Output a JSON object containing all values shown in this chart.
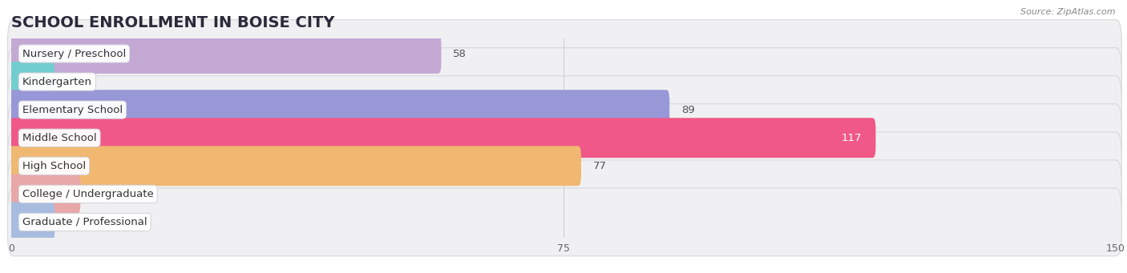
{
  "title": "SCHOOL ENROLLMENT IN BOISE CITY",
  "source": "Source: ZipAtlas.com",
  "categories": [
    "Nursery / Preschool",
    "Kindergarten",
    "Elementary School",
    "Middle School",
    "High School",
    "College / Undergraduate",
    "Graduate / Professional"
  ],
  "values": [
    58,
    0,
    89,
    117,
    77,
    9,
    0
  ],
  "bar_colors": [
    "#c4a8d4",
    "#72cece",
    "#9898d8",
    "#f05888",
    "#f0b870",
    "#e8a8a8",
    "#a8bce0"
  ],
  "xlim": [
    0,
    150
  ],
  "xticks": [
    0,
    75,
    150
  ],
  "title_fontsize": 14,
  "label_fontsize": 9.5,
  "value_fontsize": 9.5,
  "bg_color": "#ffffff",
  "row_bg_color": "#f0f0f2",
  "row_border_color": "#d8d8dd",
  "grid_color": "#d0d0d5",
  "value_color_inside": "#ffffff",
  "value_color_outside": "#555555",
  "label_box_bg": "#ffffff",
  "label_box_border": "#d0d0d8"
}
